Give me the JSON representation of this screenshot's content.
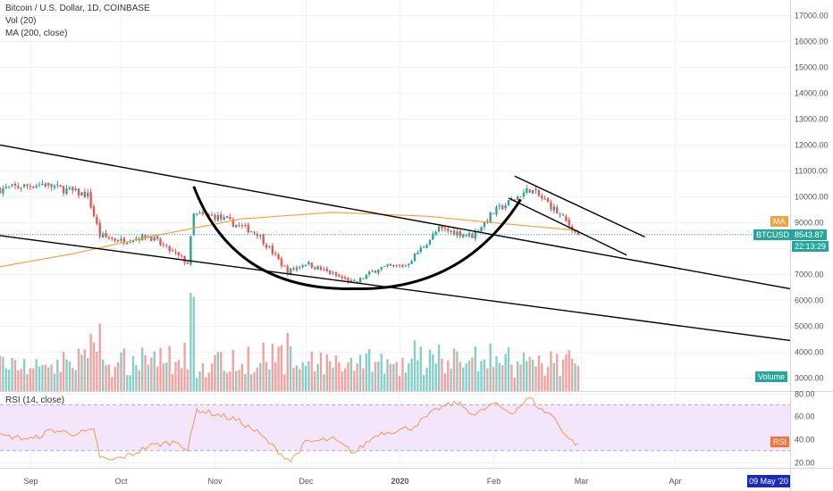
{
  "header": {
    "title": "Bitcoin / U.S. Dollar, 1D, COINBASE",
    "vol_label": "Vol (20)",
    "ma_label": "MA (200, close)",
    "rsi_label": "RSI (14, close)"
  },
  "tags": {
    "ma": "MA",
    "symbol": "BTCUSD",
    "price": "8543.87",
    "countdown": "22:13:29",
    "volume": "Volume",
    "rsi": "RSI",
    "date": "09 May '20"
  },
  "colors": {
    "up": "#26a69a",
    "down": "#ef5350",
    "ma": "#f4a340",
    "rsi_line": "#f29a52",
    "rsi_band": "#f3e5fa",
    "trend": "#000000",
    "price_line": "#26a69a",
    "date_box": "#1a2bb5"
  },
  "chart_data": {
    "type": "candlestick",
    "price_axis": {
      "ticks": [
        3000,
        4000,
        5000,
        6000,
        7000,
        8000,
        9000,
        10000,
        11000,
        12000,
        13000,
        14000,
        15000,
        16000,
        17000
      ],
      "tick_labels": [
        "3000.00",
        "4000.00",
        "5000.00",
        "6000.00",
        "7000.00",
        "8000.00",
        "9000.00",
        "10000.00",
        "11000.00",
        "12000.00",
        "13000.00",
        "14000.00",
        "15000.00",
        "16000.00",
        "17000.00"
      ],
      "range": [
        2500,
        17600
      ]
    },
    "rsi_axis": {
      "ticks": [
        20,
        40,
        60,
        80
      ],
      "tick_labels": [
        "20.00",
        "40.00",
        "60.00",
        "80.00"
      ],
      "range": [
        15,
        82
      ],
      "band": [
        30,
        70
      ]
    },
    "time_axis": {
      "labels": [
        "Sep",
        "Oct",
        "Nov",
        "Dec",
        "2020",
        "Feb",
        "Mar",
        "Apr"
      ],
      "label_dates": [
        "2019-09-01",
        "2019-10-01",
        "2019-11-01",
        "2019-12-01",
        "2020-01-01",
        "2020-02-01",
        "2020-03-01",
        "2020-04-01"
      ],
      "range": [
        "2019-08-22",
        "2020-05-09"
      ]
    },
    "price_keypoints": [
      [
        "2019-08-22",
        10300
      ],
      [
        "2019-09-05",
        10500
      ],
      [
        "2019-09-20",
        10050
      ],
      [
        "2019-09-24",
        8500
      ],
      [
        "2019-10-01",
        8300
      ],
      [
        "2019-10-10",
        8500
      ],
      [
        "2019-10-23",
        7450
      ],
      [
        "2019-10-25",
        9300
      ],
      [
        "2019-11-01",
        9250
      ],
      [
        "2019-11-15",
        8600
      ],
      [
        "2019-11-25",
        7100
      ],
      [
        "2019-12-01",
        7450
      ],
      [
        "2019-12-17",
        6650
      ],
      [
        "2019-12-25",
        7250
      ],
      [
        "2020-01-03",
        7350
      ],
      [
        "2020-01-14",
        8750
      ],
      [
        "2020-01-25",
        8500
      ],
      [
        "2020-02-01",
        9400
      ],
      [
        "2020-02-13",
        10300
      ],
      [
        "2020-02-20",
        9650
      ],
      [
        "2020-02-29",
        8543.87
      ]
    ],
    "ma200_keypoints": [
      [
        "2019-08-22",
        7300
      ],
      [
        "2019-09-15",
        7800
      ],
      [
        "2019-10-10",
        8450
      ],
      [
        "2019-11-10",
        9150
      ],
      [
        "2019-12-10",
        9400
      ],
      [
        "2020-01-10",
        9250
      ],
      [
        "2020-02-10",
        8900
      ],
      [
        "2020-02-29",
        8700
      ]
    ],
    "rsi_keypoints": [
      [
        "2019-08-22",
        43
      ],
      [
        "2019-09-02",
        40
      ],
      [
        "2019-09-08",
        48
      ],
      [
        "2019-09-15",
        45
      ],
      [
        "2019-09-22",
        47
      ],
      [
        "2019-09-24",
        25
      ],
      [
        "2019-09-27",
        21
      ],
      [
        "2019-10-05",
        27
      ],
      [
        "2019-10-10",
        34
      ],
      [
        "2019-10-20",
        38
      ],
      [
        "2019-10-23",
        30
      ],
      [
        "2019-10-26",
        66
      ],
      [
        "2019-11-01",
        62
      ],
      [
        "2019-11-08",
        57
      ],
      [
        "2019-11-15",
        46
      ],
      [
        "2019-11-23",
        27
      ],
      [
        "2019-11-26",
        21
      ],
      [
        "2019-12-01",
        37
      ],
      [
        "2019-12-10",
        40
      ],
      [
        "2019-12-17",
        28
      ],
      [
        "2019-12-25",
        45
      ],
      [
        "2020-01-05",
        50
      ],
      [
        "2020-01-14",
        67
      ],
      [
        "2020-01-20",
        72
      ],
      [
        "2020-01-26",
        61
      ],
      [
        "2020-02-01",
        71
      ],
      [
        "2020-02-07",
        63
      ],
      [
        "2020-02-13",
        76
      ],
      [
        "2020-02-17",
        65
      ],
      [
        "2020-02-20",
        62
      ],
      [
        "2020-02-26",
        40
      ],
      [
        "2020-02-29",
        35
      ]
    ],
    "volume_scale_max": 12000,
    "trendlines": [
      {
        "name": "upper-channel",
        "p1": [
          "2019-08-22",
          12000
        ],
        "p2": [
          "2020-05-09",
          6450
        ]
      },
      {
        "name": "lower-channel",
        "p1": [
          "2019-08-22",
          8500
        ],
        "p2": [
          "2020-05-09",
          4450
        ]
      },
      {
        "name": "flag-upper",
        "p1": [
          "2020-02-08",
          10800
        ],
        "p2": [
          "2020-03-22",
          8450
        ]
      },
      {
        "name": "flag-lower",
        "p1": [
          "2020-02-06",
          9950
        ],
        "p2": [
          "2020-03-16",
          7750
        ]
      }
    ],
    "cup": {
      "left": [
        "2019-10-25",
        10400
      ],
      "bottom": [
        "2019-12-17",
        6450
      ],
      "right": [
        "2020-02-10",
        9900
      ]
    },
    "last_price": 8543.87
  }
}
